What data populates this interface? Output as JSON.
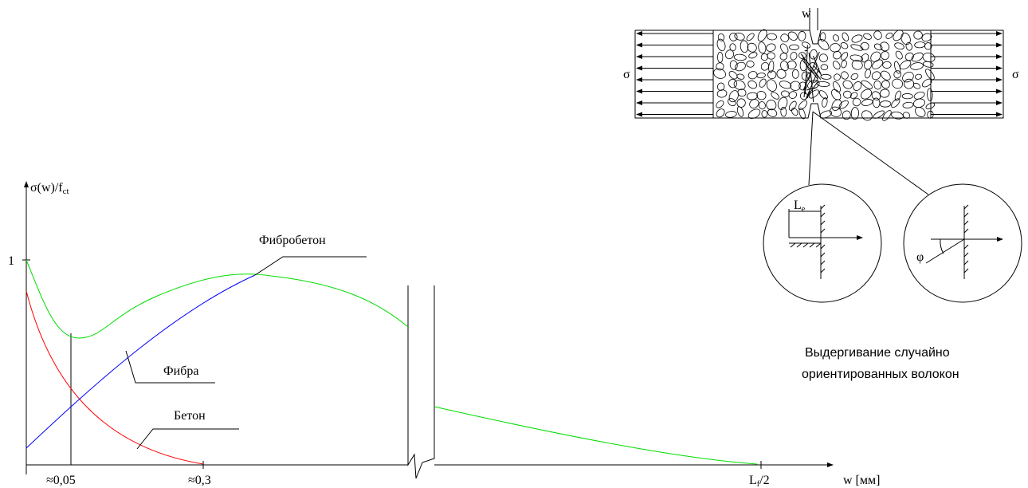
{
  "plot": {
    "y_axis_label": {
      "main": "σ(w)/f",
      "sub": "ct"
    },
    "y_tick": "1",
    "x_ticks": [
      "≈0,05",
      "≈0,3"
    ],
    "x_end_tick": {
      "main": "L",
      "sub": "f",
      "tail": "/2"
    },
    "x_axis_label": "w [мм]",
    "curve_labels": [
      "Фибробетон",
      "Фибра",
      "Бетон"
    ]
  },
  "specimen": {
    "crack_label": "w",
    "stress_labels": [
      "σ",
      "σ"
    ]
  },
  "detail": {
    "embed_label": {
      "main": "L",
      "sub": "e"
    },
    "angle_label": "φ"
  },
  "caption": [
    "Выдергивание случайно",
    "ориентированных волокон"
  ]
}
